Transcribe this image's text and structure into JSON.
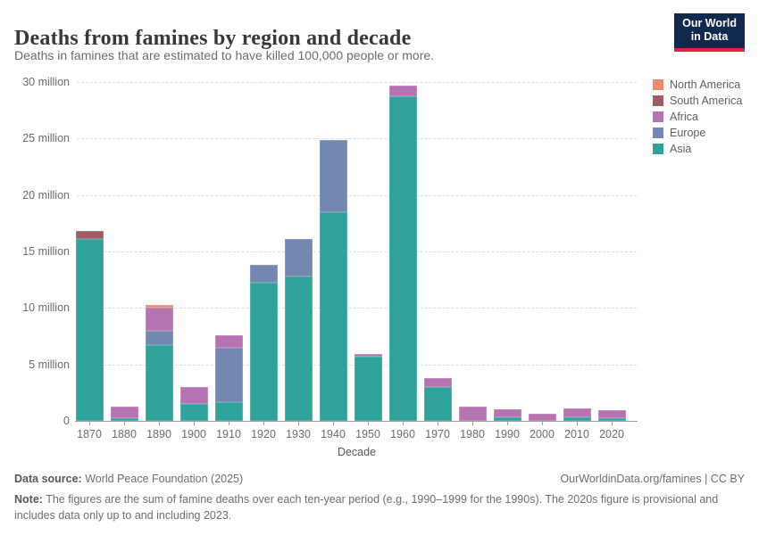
{
  "header": {
    "title": "Deaths from famines by region and decade",
    "subtitle": "Deaths in famines that are estimated to have killed 100,000 people or more.",
    "logo": {
      "line1": "Our World",
      "line2": "in Data",
      "bg": "#12294e",
      "accent": "#e0243c"
    }
  },
  "chart_data": {
    "type": "bar",
    "stacked": true,
    "title": "Deaths from famines by region and decade",
    "xlabel": "Decade",
    "ylabel": "",
    "ylim": [
      0,
      30
    ],
    "grid": "dashed-horizontal",
    "legend_position": "right",
    "unit": "million deaths",
    "categories": [
      "1870",
      "1880",
      "1890",
      "1900",
      "1910",
      "1920",
      "1930",
      "1940",
      "1950",
      "1960",
      "1970",
      "1980",
      "1990",
      "2000",
      "2010",
      "2020"
    ],
    "series": [
      {
        "name": "Asia",
        "color": "#2ea29b",
        "values": [
          16.1,
          0.2,
          6.7,
          1.5,
          1.65,
          12.2,
          12.8,
          18.5,
          5.7,
          28.7,
          3.0,
          0,
          0.35,
          0,
          0.35,
          0.2
        ]
      },
      {
        "name": "Europe",
        "color": "#7288b1",
        "values": [
          0,
          0,
          1.25,
          0,
          4.85,
          1.6,
          3.3,
          6.4,
          0,
          0,
          0,
          0,
          0,
          0,
          0,
          0
        ]
      },
      {
        "name": "Africa",
        "color": "#b673b2",
        "values": [
          0,
          1.1,
          2.1,
          1.5,
          1.1,
          0,
          0,
          0,
          0.2,
          1.0,
          0.8,
          1.3,
          0.65,
          0.65,
          0.75,
          0.75
        ]
      },
      {
        "name": "South America",
        "color": "#a05b63",
        "values": [
          0.75,
          0,
          0,
          0,
          0,
          0,
          0,
          0,
          0,
          0,
          0,
          0,
          0,
          0,
          0,
          0
        ]
      },
      {
        "name": "North America",
        "color": "#ec8a6b",
        "values": [
          0,
          0,
          0.25,
          0,
          0,
          0,
          0,
          0,
          0,
          0,
          0,
          0,
          0,
          0,
          0,
          0
        ]
      }
    ],
    "legend": [
      {
        "label": "North America",
        "color": "#ec8a6b"
      },
      {
        "label": "South America",
        "color": "#a05b63"
      },
      {
        "label": "Africa",
        "color": "#b673b2"
      },
      {
        "label": "Europe",
        "color": "#7288b1"
      },
      {
        "label": "Asia",
        "color": "#2ea29b"
      }
    ],
    "y_ticks": [
      {
        "value": 0,
        "label": "0"
      },
      {
        "value": 5,
        "label": "5 million"
      },
      {
        "value": 10,
        "label": "10 million"
      },
      {
        "value": 15,
        "label": "15 million"
      },
      {
        "value": 20,
        "label": "20 million"
      },
      {
        "value": 25,
        "label": "25 million"
      },
      {
        "value": 30,
        "label": "30 million"
      }
    ]
  },
  "footer": {
    "datasource_label": "Data source:",
    "datasource_value": " World Peace Foundation (2025)",
    "credit": "OurWorldinData.org/famines | CC BY",
    "note_label": "Note:",
    "note_text": " The figures are the sum of famine deaths over each ten-year period (e.g., 1990–1999 for the 1990s). The 2020s figure is provisional and includes data only up to and including 2023."
  }
}
